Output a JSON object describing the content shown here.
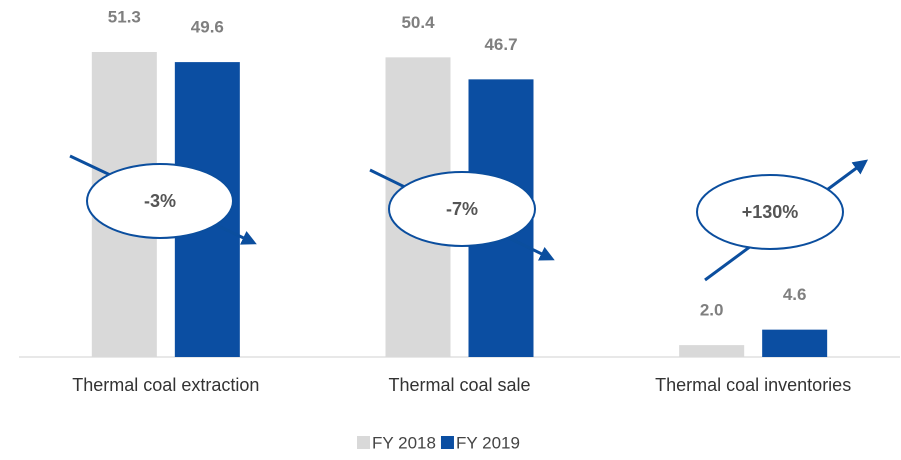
{
  "chart_data": {
    "type": "bar",
    "categories": [
      "Thermal coal extraction",
      "Thermal coal sale",
      "Thermal coal inventories"
    ],
    "series": [
      {
        "name": "FY 2018",
        "color": "#d9d9d9",
        "values": [
          51.3,
          50.4,
          2.0
        ],
        "value_labels": [
          "51.3",
          "50.4",
          "2.0"
        ]
      },
      {
        "name": "FY 2019",
        "color": "#0b4ea2",
        "values": [
          49.6,
          46.7,
          4.6
        ],
        "value_labels": [
          "49.6",
          "46.7",
          "4.6"
        ]
      }
    ],
    "ylim": [
      0,
      55
    ],
    "legend": "bottom",
    "annotations": [
      {
        "text": "-3%"
      },
      {
        "text": "-7%"
      },
      {
        "text": "+130%"
      }
    ]
  }
}
